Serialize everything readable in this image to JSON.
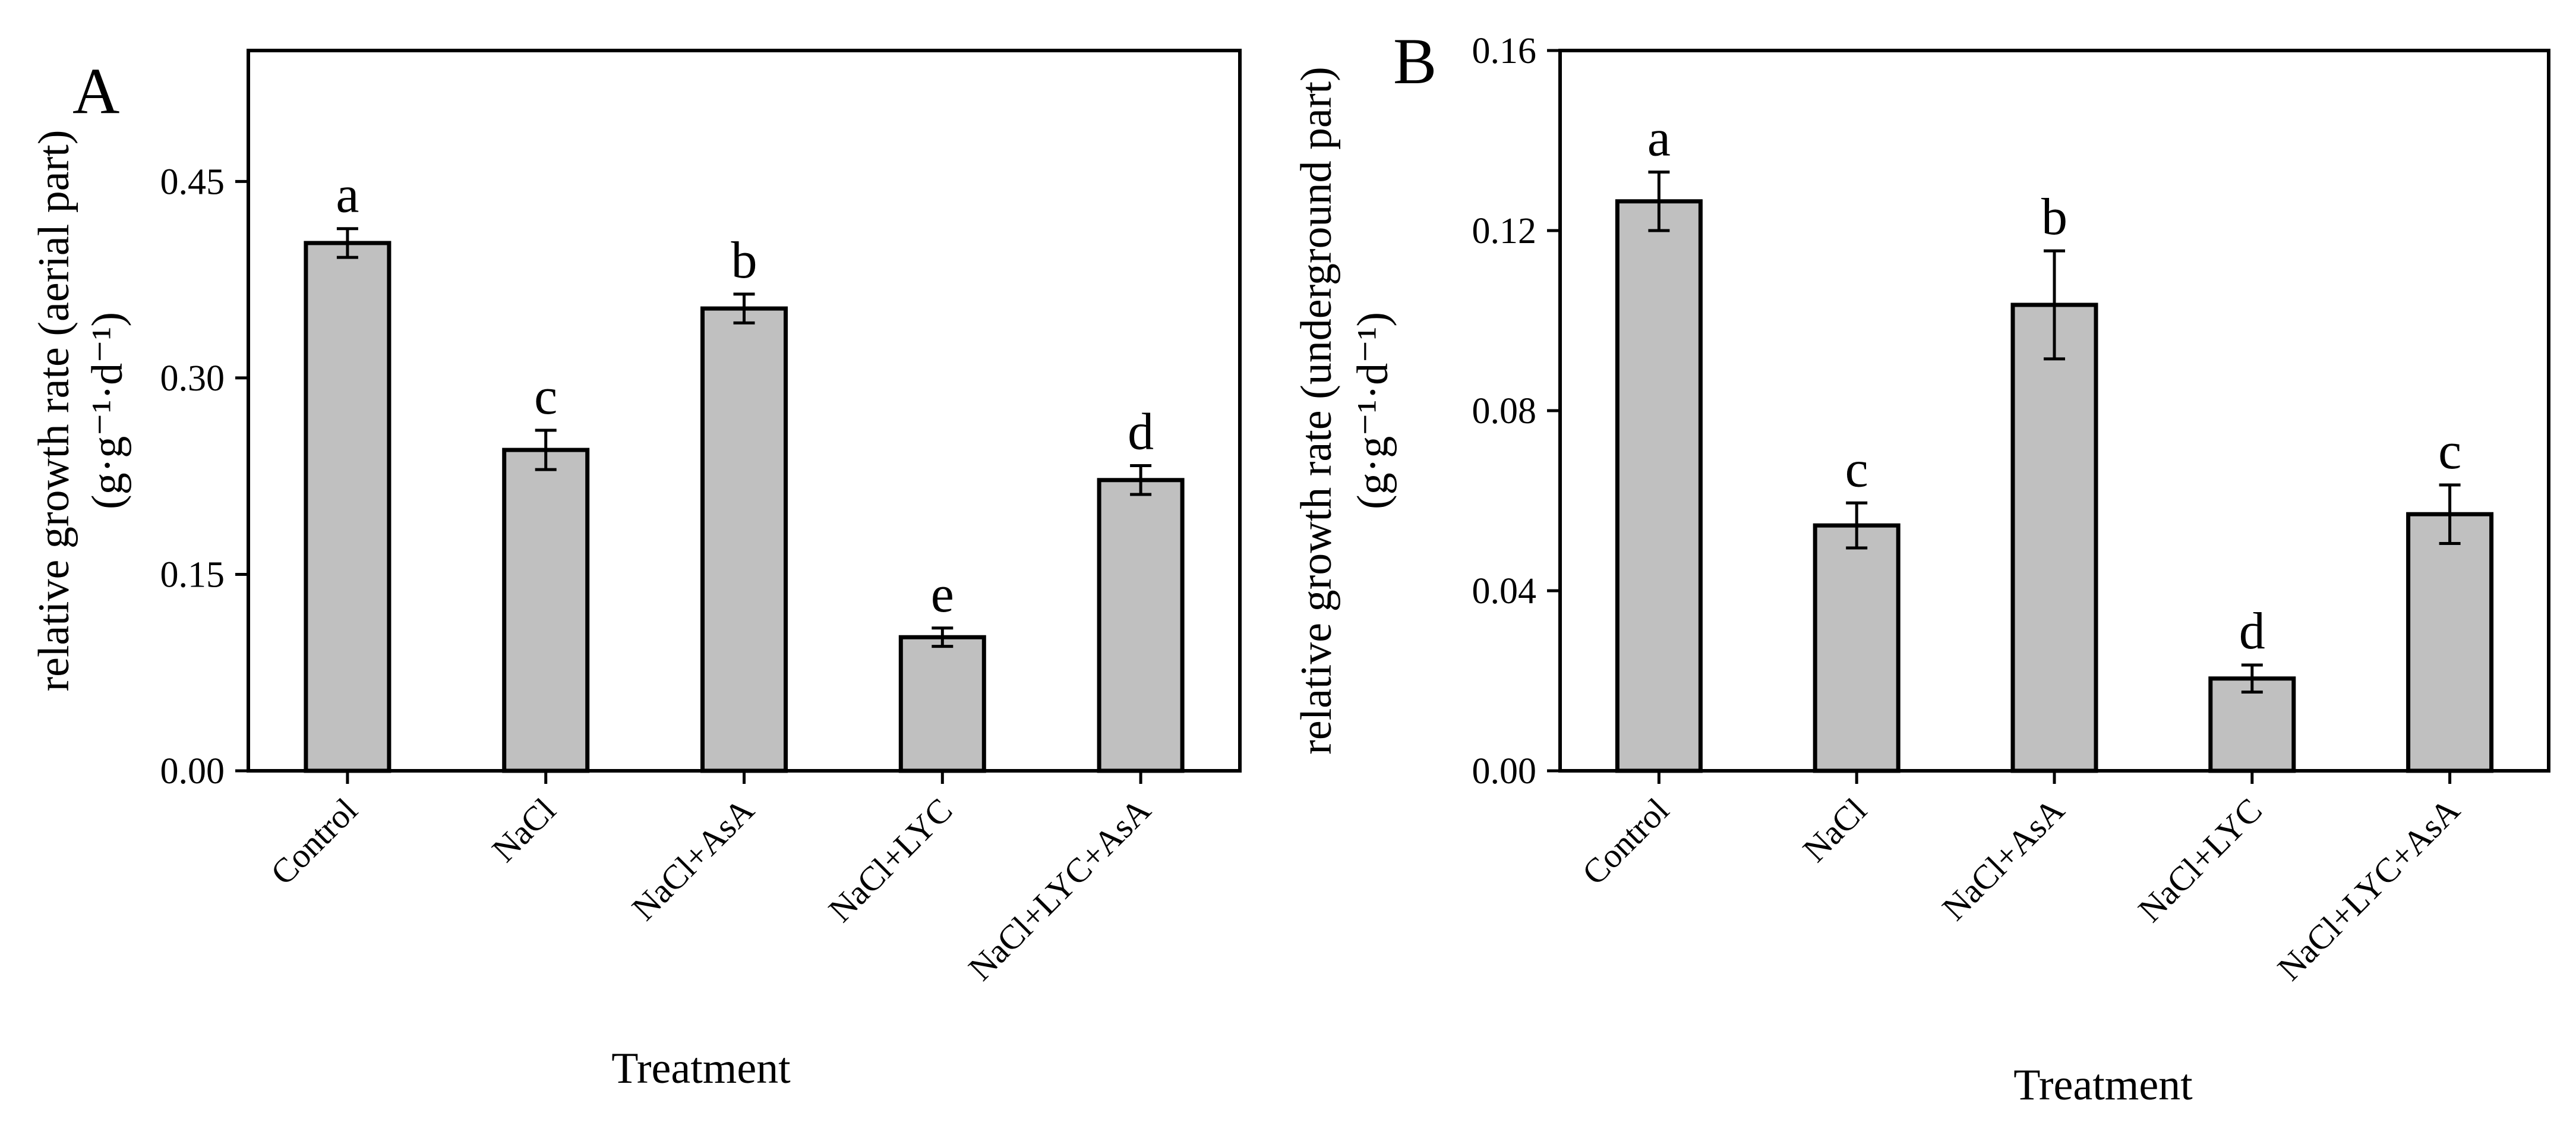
{
  "chart_data": [
    {
      "type": "bar",
      "panel_label": "A",
      "categories": [
        "Control",
        "NaCl",
        "NaCl+AsA",
        "NaCl+LYC",
        "NaCl+LYC+AsA"
      ],
      "values": [
        0.403,
        0.245,
        0.353,
        0.102,
        0.222
      ],
      "errors": [
        0.011,
        0.015,
        0.011,
        0.007,
        0.011
      ],
      "significance": [
        "a",
        "c",
        "b",
        "e",
        "d"
      ],
      "xlabel": "Treatment",
      "ylabel_line1": "relative growth rate (aerial part)",
      "ylabel_line2": "(g·g⁻¹·d⁻¹)",
      "ylim": [
        0,
        0.55
      ],
      "yticks": [
        0.0,
        0.15,
        0.3,
        0.45
      ],
      "ytick_labels": [
        "0.00",
        "0.15",
        "0.30",
        "0.45"
      ],
      "grid": false
    },
    {
      "type": "bar",
      "panel_label": "B",
      "categories": [
        "Control",
        "NaCl",
        "NaCl+AsA",
        "NaCl+LYC",
        "NaCl+LYC+AsA"
      ],
      "values": [
        0.1265,
        0.0545,
        0.1035,
        0.0205,
        0.057
      ],
      "errors": [
        0.0065,
        0.005,
        0.012,
        0.003,
        0.0065
      ],
      "significance": [
        "a",
        "c",
        "b",
        "d",
        "c"
      ],
      "xlabel": "Treatment",
      "ylabel_line1": "relative growth rate (underground part)",
      "ylabel_line2": "(g·g⁻¹·d⁻¹)",
      "ylim": [
        0,
        0.16
      ],
      "yticks": [
        0.0,
        0.04,
        0.08,
        0.12,
        0.16
      ],
      "ytick_labels": [
        "0.00",
        "0.04",
        "0.08",
        "0.12",
        "0.16"
      ],
      "grid": false
    }
  ]
}
